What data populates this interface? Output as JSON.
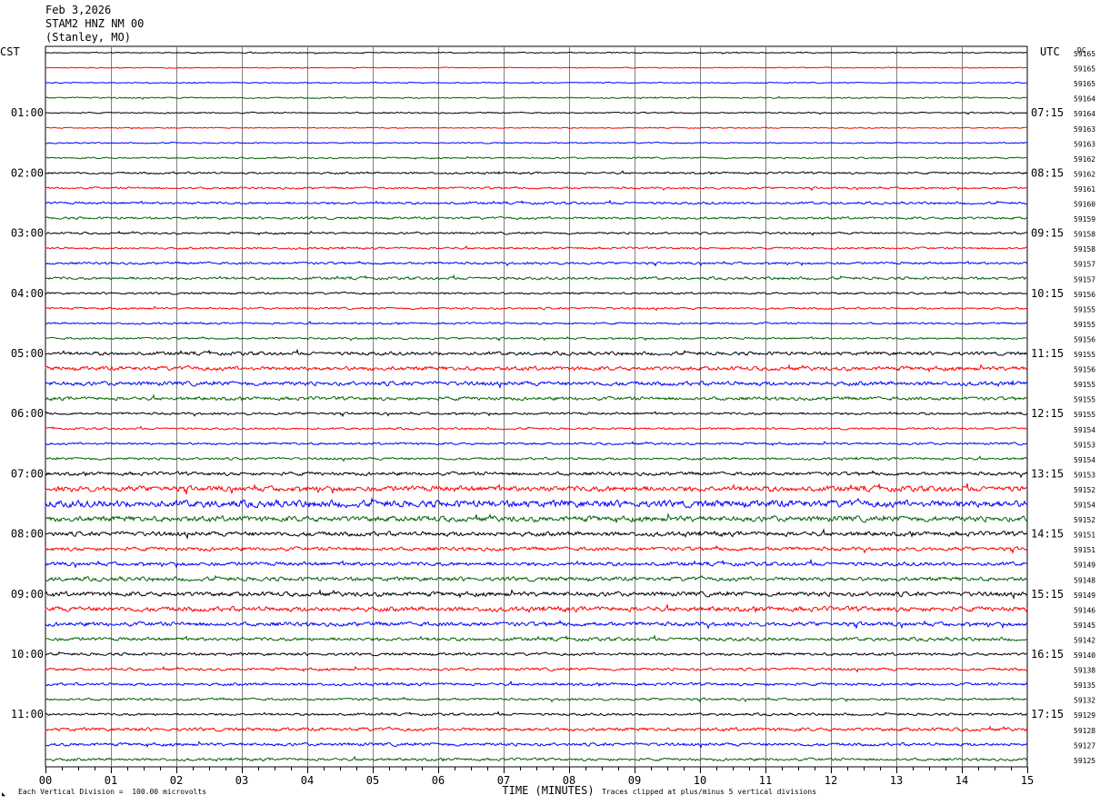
{
  "header": {
    "date": "Feb 3,2026",
    "station": "STAM2 HNZ NM 00",
    "location": "(Stanley, MO)"
  },
  "footer": {
    "scale_note": "Each Vertical Division =  100.00 microvolts",
    "clip_note": "Traces clipped at plus/minus 5 vertical divisions",
    "corner_mark": "◣"
  },
  "chart_data": {
    "type": "line",
    "title": "",
    "left_timezone": "CST",
    "right_timezone": "UTC",
    "dc_label": "DC",
    "xlabel": "TIME (MINUTES)",
    "x_ticks": [
      "00",
      "01",
      "02",
      "03",
      "04",
      "05",
      "06",
      "07",
      "08",
      "09",
      "10",
      "11",
      "12",
      "13",
      "14",
      "15"
    ],
    "xlim": [
      0,
      15
    ],
    "grid": true,
    "trace_colors": [
      "#000000",
      "#ff0000",
      "#0000ff",
      "#006400"
    ],
    "left_hour_labels": [
      "01:00",
      "02:00",
      "03:00",
      "04:00",
      "05:00",
      "06:00",
      "07:00",
      "08:00",
      "09:00",
      "10:00",
      "11:00"
    ],
    "right_hour_labels": [
      "07:15",
      "08:15",
      "09:15",
      "10:15",
      "11:15",
      "12:15",
      "13:15",
      "14:15",
      "15:15",
      "16:15",
      "17:15"
    ],
    "dc_offsets": [
      59165,
      59165,
      59165,
      59164,
      59164,
      59163,
      59163,
      59162,
      59162,
      59161,
      59160,
      59159,
      59158,
      59158,
      59157,
      59157,
      59156,
      59155,
      59155,
      59156,
      59155,
      59156,
      59155,
      59155,
      59155,
      59154,
      59153,
      59154,
      59153,
      59152,
      59154,
      59152,
      59151,
      59151,
      59149,
      59148,
      59149,
      59146,
      59145,
      59142,
      59140,
      59138,
      59135,
      59132,
      59129,
      59128,
      59127,
      59125
    ],
    "trace_amplitude": [
      0.3,
      0.25,
      0.3,
      0.4,
      0.4,
      0.3,
      0.35,
      0.45,
      0.6,
      0.6,
      0.7,
      0.7,
      0.6,
      0.6,
      0.7,
      0.8,
      0.6,
      0.6,
      0.55,
      0.6,
      1.0,
      1.2,
      1.2,
      1.0,
      0.7,
      0.6,
      0.65,
      0.7,
      1.0,
      1.6,
      2.0,
      1.6,
      1.3,
      1.1,
      1.1,
      1.2,
      1.3,
      1.4,
      1.2,
      1.0,
      0.8,
      0.8,
      0.8,
      0.7,
      0.7,
      1.0,
      0.9,
      0.8
    ]
  }
}
